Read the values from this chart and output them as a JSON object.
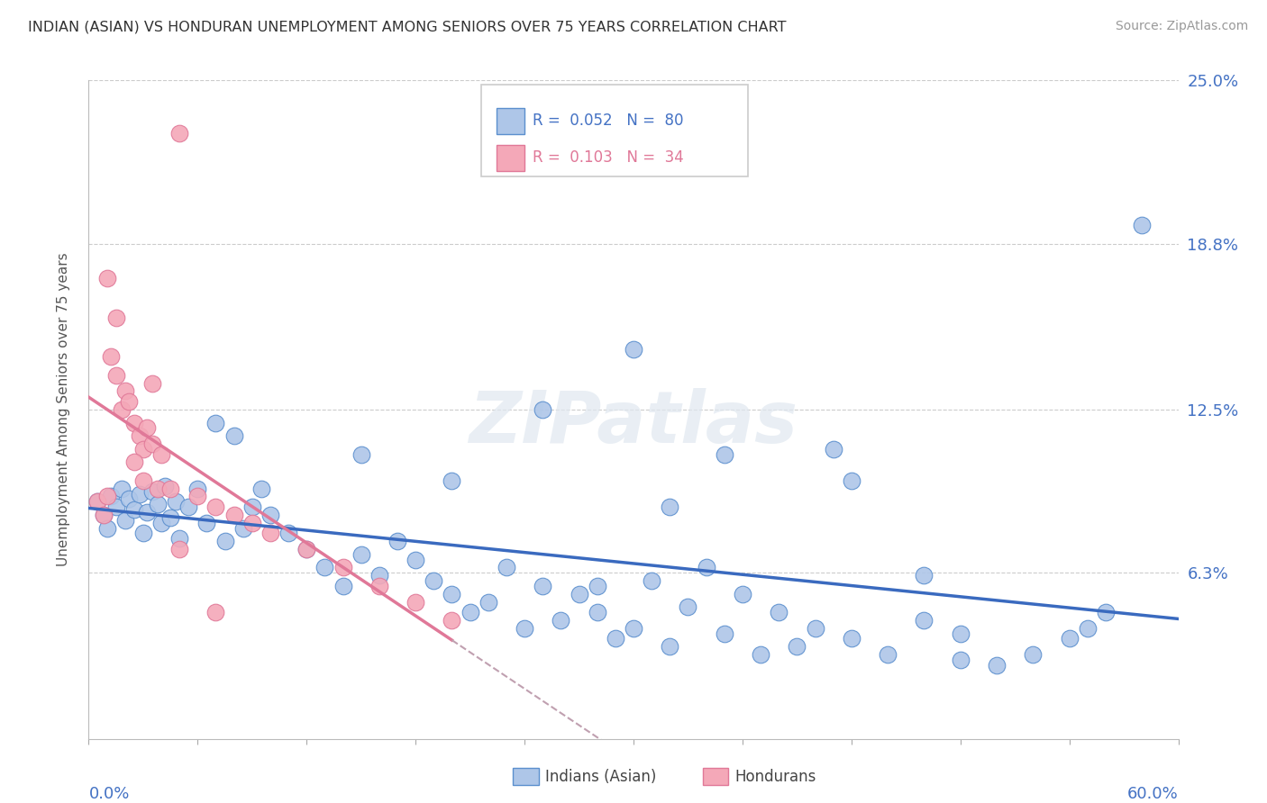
{
  "title": "INDIAN (ASIAN) VS HONDURAN UNEMPLOYMENT AMONG SENIORS OVER 75 YEARS CORRELATION CHART",
  "source": "Source: ZipAtlas.com",
  "ylabel": "Unemployment Among Seniors over 75 years",
  "y_ticks": [
    0.0,
    0.063,
    0.125,
    0.188,
    0.25
  ],
  "y_tick_labels": [
    "",
    "6.3%",
    "12.5%",
    "18.8%",
    "25.0%"
  ],
  "xmin": 0.0,
  "xmax": 0.6,
  "ymin": 0.0,
  "ymax": 0.25,
  "color_indian": "#aec6e8",
  "color_honduran": "#f4a8b8",
  "color_indian_border": "#5b8fce",
  "color_honduran_border": "#e07898",
  "color_indian_line": "#3a6abf",
  "color_honduran_line": "#e07898",
  "watermark": "ZIPatlas",
  "indian_x": [
    0.005,
    0.008,
    0.01,
    0.012,
    0.015,
    0.018,
    0.02,
    0.022,
    0.025,
    0.028,
    0.03,
    0.032,
    0.035,
    0.038,
    0.04,
    0.042,
    0.045,
    0.048,
    0.05,
    0.055,
    0.06,
    0.065,
    0.07,
    0.075,
    0.08,
    0.085,
    0.09,
    0.095,
    0.1,
    0.11,
    0.12,
    0.13,
    0.14,
    0.15,
    0.16,
    0.17,
    0.18,
    0.19,
    0.2,
    0.21,
    0.22,
    0.23,
    0.24,
    0.25,
    0.26,
    0.27,
    0.28,
    0.29,
    0.3,
    0.31,
    0.32,
    0.33,
    0.34,
    0.35,
    0.36,
    0.37,
    0.38,
    0.39,
    0.4,
    0.42,
    0.44,
    0.46,
    0.48,
    0.5,
    0.52,
    0.54,
    0.56,
    0.3,
    0.25,
    0.2,
    0.15,
    0.42,
    0.46,
    0.35,
    0.28,
    0.32,
    0.48,
    0.55,
    0.58,
    0.41
  ],
  "indian_y": [
    0.09,
    0.085,
    0.08,
    0.092,
    0.088,
    0.095,
    0.083,
    0.091,
    0.087,
    0.093,
    0.078,
    0.086,
    0.094,
    0.089,
    0.082,
    0.096,
    0.084,
    0.09,
    0.076,
    0.088,
    0.095,
    0.082,
    0.12,
    0.075,
    0.115,
    0.08,
    0.088,
    0.095,
    0.085,
    0.078,
    0.072,
    0.065,
    0.058,
    0.07,
    0.062,
    0.075,
    0.068,
    0.06,
    0.055,
    0.048,
    0.052,
    0.065,
    0.042,
    0.058,
    0.045,
    0.055,
    0.048,
    0.038,
    0.042,
    0.06,
    0.035,
    0.05,
    0.065,
    0.04,
    0.055,
    0.032,
    0.048,
    0.035,
    0.042,
    0.038,
    0.032,
    0.045,
    0.04,
    0.028,
    0.032,
    0.038,
    0.048,
    0.148,
    0.125,
    0.098,
    0.108,
    0.098,
    0.062,
    0.108,
    0.058,
    0.088,
    0.03,
    0.042,
    0.195,
    0.11
  ],
  "honduran_x": [
    0.005,
    0.008,
    0.01,
    0.012,
    0.015,
    0.018,
    0.02,
    0.022,
    0.025,
    0.028,
    0.03,
    0.032,
    0.035,
    0.038,
    0.04,
    0.045,
    0.05,
    0.06,
    0.07,
    0.08,
    0.09,
    0.1,
    0.12,
    0.14,
    0.16,
    0.18,
    0.2,
    0.01,
    0.015,
    0.025,
    0.03,
    0.035,
    0.05,
    0.07
  ],
  "honduran_y": [
    0.09,
    0.085,
    0.092,
    0.145,
    0.138,
    0.125,
    0.132,
    0.128,
    0.12,
    0.115,
    0.11,
    0.118,
    0.112,
    0.095,
    0.108,
    0.095,
    0.23,
    0.092,
    0.088,
    0.085,
    0.082,
    0.078,
    0.072,
    0.065,
    0.058,
    0.052,
    0.045,
    0.175,
    0.16,
    0.105,
    0.098,
    0.135,
    0.072,
    0.048
  ]
}
